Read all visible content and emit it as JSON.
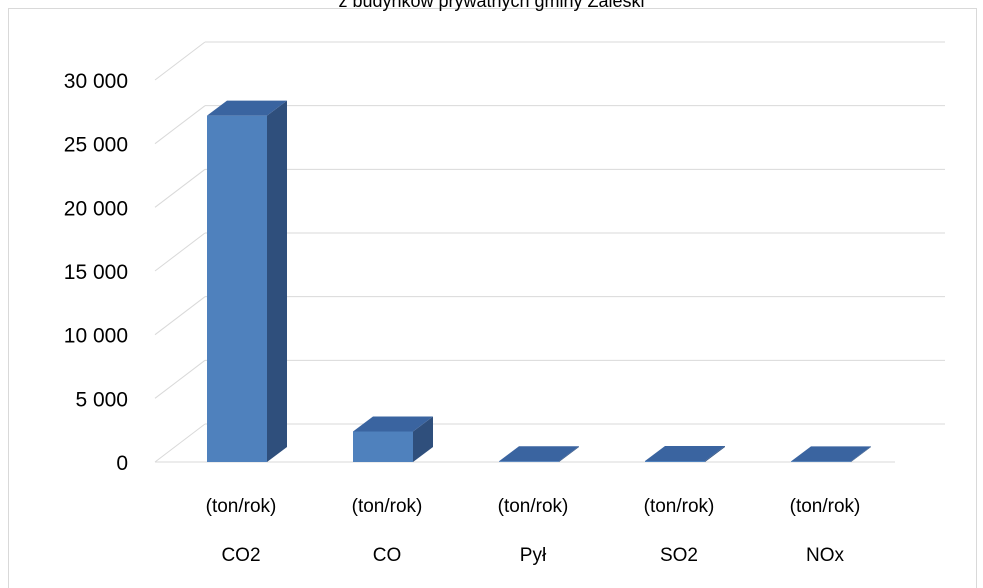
{
  "chart_data": {
    "type": "bar",
    "title": "z budynków prywatnych gminy Zaleski",
    "categories": [
      "CO2",
      "CO",
      "Pył",
      "SO2",
      "NOx"
    ],
    "unit_labels": [
      "(ton/rok)",
      "(ton/rok)",
      "(ton/rok)",
      "(ton/rok)",
      "(ton/rok)"
    ],
    "values": [
      27200,
      2400,
      60,
      80,
      50
    ],
    "ylim": [
      0,
      30000
    ],
    "yticks": [
      "0",
      "5 000",
      "10 000",
      "15 000",
      "20 000",
      "25 000",
      "30 000"
    ],
    "grid": true,
    "style": "3d-column",
    "colors": {
      "front": "#4f81bd",
      "top": "#3a64a0",
      "side": "#2f4f7c"
    }
  }
}
